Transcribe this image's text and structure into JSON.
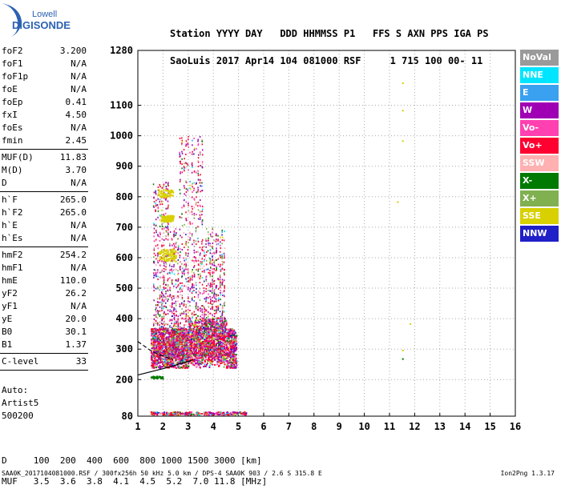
{
  "logo": {
    "line1": "Lowell",
    "line2": "DIGISONDE"
  },
  "header": {
    "labels": [
      "Station",
      "YYYY",
      "DAY",
      "DDD",
      "HHMMSS",
      "P1",
      "FFS",
      "S",
      "AXN",
      "PPS",
      "IGA",
      "PS"
    ],
    "values": [
      "SaoLuis",
      "2017",
      "Apr14",
      "104",
      "081000",
      "RSF",
      "1",
      "715",
      "100",
      "00-",
      "11"
    ]
  },
  "params_groups": [
    [
      {
        "label": "foF2",
        "value": "3.200"
      },
      {
        "label": "foF1",
        "value": "N/A"
      },
      {
        "label": "foF1p",
        "value": "N/A"
      },
      {
        "label": "foE",
        "value": "N/A"
      },
      {
        "label": "foEp",
        "value": "0.41"
      },
      {
        "label": "fxI",
        "value": "4.50"
      },
      {
        "label": "foEs",
        "value": "N/A"
      },
      {
        "label": "fmin",
        "value": "2.45"
      }
    ],
    [
      {
        "label": "MUF(D)",
        "value": "11.83"
      },
      {
        "label": "M(D)",
        "value": "3.70"
      },
      {
        "label": "D",
        "value": "N/A"
      }
    ],
    [
      {
        "label": "h`F",
        "value": "265.0"
      },
      {
        "label": "h`F2",
        "value": "265.0"
      },
      {
        "label": "h`E",
        "value": "N/A"
      },
      {
        "label": "h`Es",
        "value": "N/A"
      }
    ],
    [
      {
        "label": "hmF2",
        "value": "254.2"
      },
      {
        "label": "hmF1",
        "value": "N/A"
      },
      {
        "label": "hmE",
        "value": "110.0"
      },
      {
        "label": "yF2",
        "value": "26.2"
      },
      {
        "label": "yF1",
        "value": "N/A"
      },
      {
        "label": "yE",
        "value": "20.0"
      },
      {
        "label": "B0",
        "value": "30.1"
      },
      {
        "label": "B1",
        "value": "1.37"
      }
    ],
    [
      {
        "label": "C-level",
        "value": "33"
      }
    ]
  ],
  "auto_text": [
    "Auto:",
    "Artist5",
    "500200"
  ],
  "legend": [
    {
      "label": "NoVal",
      "color": "#9a9a9a"
    },
    {
      "label": "NNE",
      "color": "#00e5ff"
    },
    {
      "label": "E",
      "color": "#3aa0f0"
    },
    {
      "label": "W",
      "color": "#a000b4"
    },
    {
      "label": "Vo-",
      "color": "#ff40b0"
    },
    {
      "label": "Vo+",
      "color": "#ff0030"
    },
    {
      "label": "SSW",
      "color": "#ffb0b0"
    },
    {
      "label": "X-",
      "color": "#007a00"
    },
    {
      "label": "X+",
      "color": "#80b050"
    },
    {
      "label": "SSE",
      "color": "#d8d000"
    },
    {
      "label": "NNW",
      "color": "#2020c8"
    }
  ],
  "dmuf": {
    "d_label": "D",
    "d_values": [
      "100",
      "200",
      "400",
      "600",
      "800",
      "1000",
      "1500",
      "3000",
      "[km]"
    ],
    "muf_label": "MUF",
    "muf_values": [
      "3.5",
      "3.6",
      "3.8",
      "4.1",
      "4.5",
      "5.2",
      "7.0",
      "11.8",
      "[MHz]"
    ]
  },
  "footer": "SAA0K_2017104081000.RSF / 300fx256h 50 kHz 5.0 km / DPS-4 SAA0K 903 / 2.6 S 315.8 E",
  "version": "Ion2Png 1.3.17",
  "chart_data": {
    "type": "scatter",
    "title": "",
    "xlabel": "",
    "ylabel": "",
    "xlim": [
      1,
      16
    ],
    "ylim": [
      80,
      1280
    ],
    "x_ticks": [
      1,
      2,
      3,
      4,
      5,
      6,
      7,
      8,
      9,
      10,
      11,
      12,
      13,
      14,
      15,
      16
    ],
    "y_ticks": [
      80,
      200,
      300,
      400,
      500,
      600,
      700,
      800,
      900,
      1000,
      1100,
      1280
    ],
    "grid": true,
    "trace_lines": [
      {
        "name": "virtual-height-trace-upper",
        "x": [
          1.0,
          1.6,
          2.4
        ],
        "y": [
          325,
          290,
          265
        ]
      },
      {
        "name": "virtual-height-trace-lower",
        "x": [
          1.0,
          2.2,
          3.2
        ],
        "y": [
          215,
          240,
          265
        ]
      }
    ],
    "outliers": [
      {
        "x": 11.5,
        "y": 1175,
        "series": "SSE"
      },
      {
        "x": 11.5,
        "y": 1085,
        "series": "SSE"
      },
      {
        "x": 11.5,
        "y": 985,
        "series": "SSE"
      },
      {
        "x": 11.3,
        "y": 785,
        "series": "SSE"
      },
      {
        "x": 11.8,
        "y": 385,
        "series": "SSE"
      },
      {
        "x": 11.5,
        "y": 270,
        "series": "X-"
      },
      {
        "x": 11.5,
        "y": 298,
        "series": "SSE"
      }
    ]
  }
}
